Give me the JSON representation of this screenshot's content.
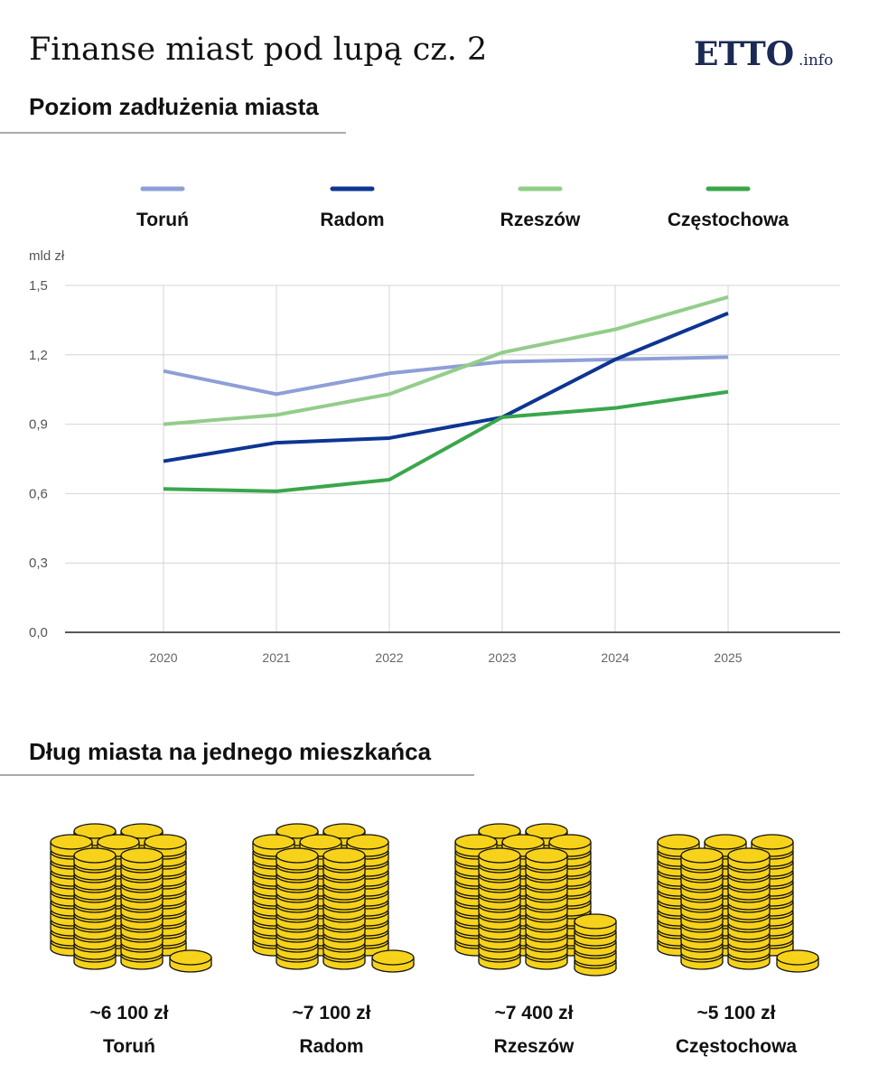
{
  "title": "Finanse miast pod lupą cz. 2",
  "logo": "ETTO",
  "logo_suffix": ".info",
  "chart_data": {
    "type": "line",
    "title": "Poziom zadłużenia miasta",
    "y_label": "mld zł",
    "categories": [
      "2020",
      "2021",
      "2022",
      "2023",
      "2024",
      "2025"
    ],
    "ylim": [
      0,
      1.5
    ],
    "yticks": [
      {
        "value": 0,
        "label": "0,0"
      },
      {
        "value": 0.3,
        "label": "0,3"
      },
      {
        "value": 0.6,
        "label": "0,6"
      },
      {
        "value": 0.9,
        "label": "0,9"
      },
      {
        "value": 1.2,
        "label": "1,2"
      },
      {
        "value": 1.5,
        "label": "1,5"
      }
    ],
    "grid": true,
    "series": [
      {
        "name": "Toruń",
        "color": "#8e9fd6",
        "values": [
          1.13,
          1.03,
          1.12,
          1.17,
          1.18,
          1.19
        ]
      },
      {
        "name": "Radom",
        "color": "#0d3592",
        "values": [
          0.74,
          0.82,
          0.84,
          0.93,
          1.18,
          1.38
        ]
      },
      {
        "name": "Rzeszów",
        "color": "#93cd8a",
        "values": [
          0.9,
          0.94,
          1.03,
          1.21,
          1.31,
          1.45
        ]
      },
      {
        "name": "Częstochowa",
        "color": "#3aa64b",
        "values": [
          0.62,
          0.61,
          0.66,
          0.93,
          0.97,
          1.04
        ]
      }
    ]
  },
  "per_capita": {
    "title": "Dług miasta na jednego mieszkańca",
    "items": [
      {
        "amount": "~6 100 zł",
        "city": "Toruń"
      },
      {
        "amount": "~7 100 zł",
        "city": "Radom"
      },
      {
        "amount": "~7 400 zł",
        "city": "Rzeszów"
      },
      {
        "amount": "~5 100 zł",
        "city": "Częstochowa"
      }
    ]
  }
}
